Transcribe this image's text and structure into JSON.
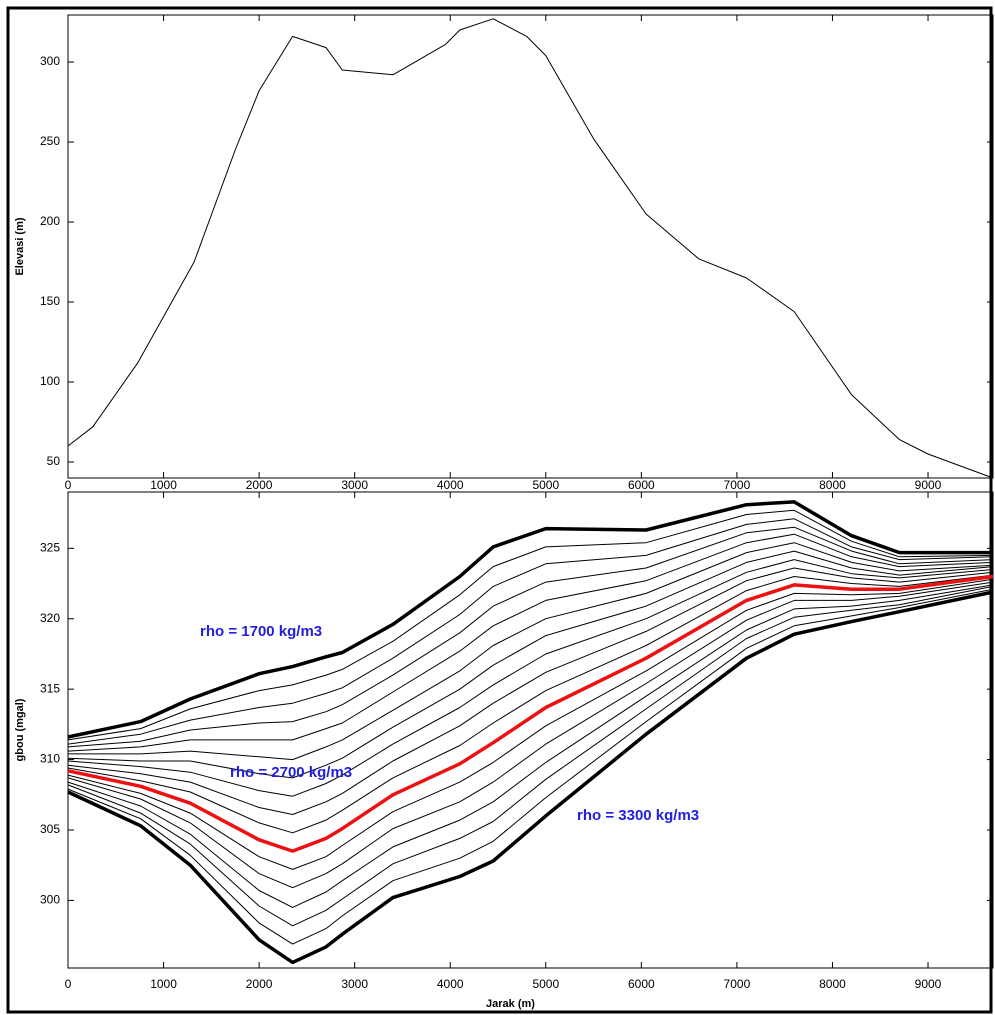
{
  "chart_data": [
    {
      "type": "line",
      "ylabel": "Elevasi (m)",
      "x": [
        0,
        260,
        730,
        1320,
        1750,
        2000,
        2350,
        2700,
        2870,
        3400,
        3950,
        4100,
        4450,
        4800,
        5000,
        5500,
        6050,
        6600,
        7100,
        7600,
        8200,
        8700,
        9000,
        9680
      ],
      "series": [
        {
          "color": "#000000",
          "values": [
            60,
            72,
            112,
            175,
            245,
            282,
            316,
            309,
            295,
            292,
            311,
            320,
            327,
            316,
            304,
            252,
            205,
            177,
            165,
            144,
            92,
            64,
            55,
            40
          ]
        }
      ],
      "xlim": [
        0,
        9680
      ],
      "xticks": [
        0,
        1000,
        2000,
        3000,
        4000,
        5000,
        6000,
        7000,
        8000,
        9000
      ],
      "ylim": [
        40,
        329.4
      ],
      "yticks": [
        50,
        100,
        150,
        200,
        250,
        300
      ]
    },
    {
      "type": "line",
      "xlabel": "Jarak (m)",
      "ylabel": "gbou (mgal)",
      "x": [
        0,
        760,
        1280,
        2000,
        2350,
        2700,
        2870,
        3400,
        4100,
        4450,
        5000,
        6050,
        7100,
        7600,
        8200,
        8700,
        9680
      ],
      "series": [
        {
          "color": "#000000",
          "values": [
            311.6,
            312.7,
            314.3,
            316.1,
            316.6,
            317.3,
            317.6,
            319.6,
            323.0,
            325.1,
            326.4,
            326.3,
            328.1,
            328.3,
            325.9,
            324.7,
            324.7
          ]
        },
        {
          "color": "#000000",
          "values": [
            311.4,
            312.2,
            313.6,
            314.9,
            315.3,
            316.0,
            316.4,
            318.4,
            321.7,
            323.7,
            325.1,
            325.4,
            327.4,
            327.7,
            325.5,
            324.4,
            324.5
          ]
        },
        {
          "color": "#000000",
          "values": [
            311.1,
            311.8,
            312.8,
            313.7,
            314.0,
            314.7,
            315.1,
            317.2,
            320.3,
            322.3,
            323.9,
            324.5,
            326.7,
            327.1,
            325.1,
            324.2,
            324.4
          ]
        },
        {
          "color": "#000000",
          "values": [
            310.9,
            311.3,
            312.1,
            312.6,
            312.7,
            313.4,
            313.9,
            316.0,
            319.0,
            320.9,
            322.6,
            323.6,
            326.1,
            326.5,
            324.8,
            323.9,
            324.2
          ]
        },
        {
          "color": "#000000",
          "values": [
            310.6,
            310.9,
            311.4,
            311.4,
            311.4,
            312.2,
            312.6,
            314.8,
            317.7,
            319.5,
            321.3,
            322.7,
            325.4,
            326.0,
            324.4,
            323.7,
            324.0
          ]
        },
        {
          "color": "#000000",
          "values": [
            310.4,
            310.4,
            310.6,
            310.2,
            310.0,
            310.9,
            311.4,
            313.5,
            316.3,
            318.1,
            320.0,
            321.8,
            324.7,
            325.4,
            324.0,
            323.4,
            323.8
          ]
        },
        {
          "color": "#000000",
          "values": [
            310.1,
            309.9,
            309.9,
            309.0,
            308.7,
            309.6,
            310.1,
            312.3,
            315.0,
            316.7,
            318.8,
            320.9,
            324.0,
            324.8,
            323.6,
            323.1,
            323.7
          ]
        },
        {
          "color": "#000000",
          "values": [
            309.9,
            309.5,
            309.1,
            307.8,
            307.4,
            308.3,
            308.9,
            311.1,
            313.7,
            315.3,
            317.5,
            320.0,
            323.3,
            324.2,
            323.2,
            322.9,
            323.5
          ]
        },
        {
          "color": "#000000",
          "values": [
            309.6,
            309.0,
            308.4,
            306.6,
            306.1,
            307.0,
            307.6,
            309.9,
            312.4,
            314.0,
            316.2,
            319.1,
            322.7,
            323.6,
            322.9,
            322.6,
            323.3
          ]
        },
        {
          "color": "#000000",
          "values": [
            309.4,
            308.5,
            307.7,
            305.5,
            304.8,
            305.7,
            306.4,
            308.7,
            311.0,
            312.6,
            314.9,
            318.1,
            322.0,
            323.0,
            322.5,
            322.3,
            323.1
          ]
        },
        {
          "color": "#ee1111",
          "values": [
            309.2,
            308.1,
            306.9,
            304.3,
            303.5,
            304.4,
            305.1,
            307.5,
            309.7,
            311.2,
            313.7,
            317.2,
            321.3,
            322.4,
            322.1,
            322.1,
            323.0
          ]
        },
        {
          "color": "#000000",
          "values": [
            308.9,
            307.6,
            306.2,
            303.1,
            302.2,
            303.1,
            303.9,
            306.3,
            308.4,
            309.8,
            312.4,
            316.3,
            320.6,
            321.8,
            321.7,
            321.8,
            322.8
          ]
        },
        {
          "color": "#000000",
          "values": [
            308.7,
            307.2,
            305.5,
            301.9,
            300.9,
            301.9,
            302.6,
            305.1,
            307.0,
            308.4,
            311.1,
            315.4,
            319.9,
            321.3,
            321.3,
            321.6,
            322.6
          ]
        },
        {
          "color": "#000000",
          "values": [
            308.4,
            306.7,
            304.7,
            300.7,
            299.5,
            300.6,
            301.4,
            303.8,
            305.7,
            307.0,
            309.8,
            314.5,
            319.2,
            320.7,
            320.9,
            321.3,
            322.4
          ]
        },
        {
          "color": "#000000",
          "values": [
            308.2,
            306.2,
            304.0,
            299.6,
            298.2,
            299.3,
            300.1,
            302.6,
            304.4,
            305.6,
            308.6,
            313.6,
            318.6,
            320.1,
            320.6,
            321.0,
            322.3
          ]
        },
        {
          "color": "#000000",
          "values": [
            307.9,
            305.8,
            303.2,
            298.4,
            296.9,
            298.0,
            298.9,
            301.4,
            303.0,
            304.2,
            307.3,
            312.7,
            317.9,
            319.5,
            320.2,
            320.8,
            322.1
          ]
        },
        {
          "color": "#000000",
          "values": [
            307.7,
            305.3,
            302.5,
            297.2,
            295.6,
            296.7,
            297.6,
            300.2,
            301.7,
            302.8,
            306.0,
            311.8,
            317.2,
            318.9,
            319.8,
            320.5,
            321.9
          ]
        }
      ],
      "annotations": [
        {
          "text": "rho = 1700 kg/m3",
          "color": "#2020dd"
        },
        {
          "text": "rho = 2700 kg/m3",
          "color": "#2020dd"
        },
        {
          "text": "rho = 3300 kg/m3",
          "color": "#2020dd"
        }
      ],
      "xlim": [
        0,
        9680
      ],
      "xticks": [
        0,
        1000,
        2000,
        3000,
        4000,
        5000,
        6000,
        7000,
        8000,
        9000
      ],
      "ylim": [
        295.2,
        329.0
      ],
      "yticks": [
        300,
        305,
        310,
        315,
        320,
        325
      ]
    }
  ]
}
